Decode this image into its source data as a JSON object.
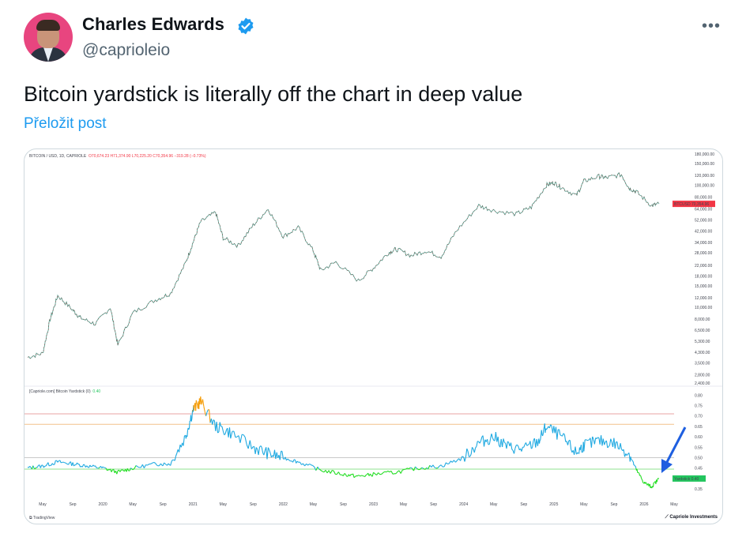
{
  "author": {
    "name": "Charles Edwards",
    "handle": "@caprioleio",
    "verified_icon": "verified-badge-icon",
    "avatar_icon": "profile-photo",
    "more_label": "•••"
  },
  "tweet": {
    "text": "Bitcoin yardstick is literally off the chart in deep value",
    "translate_label": "Přeložit post"
  },
  "colors": {
    "verified": "#1d9bf0",
    "link": "#1d9bf0",
    "price_line": "#8f2b2b",
    "yardstick_high": "#1fa9e1",
    "yardstick_low": "#22dd22",
    "yardstick_peak": "#f59e0b",
    "arrow": "#1e5fe0",
    "price_badge": "#f23645"
  },
  "chart_data": [
    {
      "type": "line",
      "title": "BITCOIN / USD, 1D, CAPRIOLE",
      "ohlc_text": "O70,674.23 H71,374.90 L70,225.20 C70,354.96 −319.28 (−0.73%)",
      "y_scale": "log",
      "y_ticks": [
        "180,000.00",
        "150,000.00",
        "120,000.00",
        "100,000.00",
        "80,000.00",
        "64,000.00",
        "52,000.00",
        "42,000.00",
        "34,000.00",
        "28,000.00",
        "22,000.00",
        "18,000.00",
        "15,000.00",
        "12,000.00",
        "10,000.00",
        "8,000.00",
        "6,500.00",
        "5,300.00",
        "4,300.00",
        "3,500.00",
        "2,800.00",
        "2,400.00"
      ],
      "y_range": [
        2400,
        180000
      ],
      "current_label": "BTCUSD",
      "current_value": "70,354.96",
      "series": [
        {
          "x": [
            "2019-03",
            "2019-05",
            "2019-06",
            "2019-07",
            "2019-09",
            "2019-10",
            "2019-12",
            "2020-02",
            "2020-03",
            "2020-05",
            "2020-08",
            "2020-10",
            "2020-12",
            "2021-01",
            "2021-02",
            "2021-04",
            "2021-05",
            "2021-07",
            "2021-09",
            "2021-11",
            "2022-01",
            "2022-03",
            "2022-05",
            "2022-06",
            "2022-08",
            "2022-11",
            "2023-01",
            "2023-03",
            "2023-04",
            "2023-06",
            "2023-08",
            "2023-10",
            "2023-12",
            "2024-03",
            "2024-05",
            "2024-08",
            "2024-10",
            "2024-12",
            "2025-01",
            "2025-02",
            "2025-04",
            "2025-05",
            "2025-07",
            "2025-08",
            "2025-10",
            "2025-11",
            "2025-12",
            "2026-02",
            "2026-03"
          ],
          "values": [
            3900,
            4200,
            8000,
            12500,
            9500,
            8200,
            7300,
            10000,
            4900,
            9000,
            11500,
            13000,
            23000,
            34000,
            50000,
            60000,
            37000,
            32000,
            47000,
            64000,
            38000,
            45000,
            29000,
            20000,
            23500,
            16500,
            21000,
            28000,
            30000,
            26500,
            29000,
            26000,
            42000,
            68000,
            62000,
            58000,
            66000,
            100000,
            105000,
            96000,
            82000,
            108000,
            118000,
            115000,
            122000,
            95000,
            88000,
            68000,
            70354
          ]
        }
      ]
    },
    {
      "type": "line",
      "title": "[Capriole.com] Bitcoin Yardstick (0)",
      "current_value_text": "0.40",
      "y_ticks": [
        "0.80",
        "0.75",
        "0.70",
        "0.65",
        "0.60",
        "0.55",
        "0.50",
        "0.45",
        "0.40",
        "0.35"
      ],
      "y_range": [
        0.32,
        0.82
      ],
      "reference_lines": [
        0.71,
        0.66,
        0.5,
        0.445
      ],
      "current_label": "Yardstick",
      "current_value": "0.40",
      "x_ticks": [
        "May",
        "Sep",
        "2020",
        "May",
        "Sep",
        "2021",
        "May",
        "Sep",
        "2022",
        "May",
        "Sep",
        "2023",
        "May",
        "Sep",
        "2024",
        "May",
        "Sep",
        "2025",
        "May",
        "Sep",
        "2026",
        "May"
      ],
      "series": [
        {
          "x": [
            "2019-03",
            "2019-05",
            "2019-07",
            "2019-09",
            "2019-11",
            "2020-01",
            "2020-03",
            "2020-05",
            "2020-08",
            "2020-10",
            "2020-12",
            "2021-01",
            "2021-02",
            "2021-04",
            "2021-06",
            "2021-09",
            "2021-11",
            "2022-01",
            "2022-03",
            "2022-06",
            "2022-09",
            "2022-11",
            "2023-01",
            "2023-04",
            "2023-07",
            "2023-10",
            "2024-01",
            "2024-03",
            "2024-05",
            "2024-07",
            "2024-09",
            "2024-11",
            "2024-12",
            "2025-02",
            "2025-04",
            "2025-05",
            "2025-07",
            "2025-09",
            "2025-11",
            "2025-12",
            "2026-01",
            "2026-02",
            "2026-03"
          ],
          "values": [
            0.45,
            0.46,
            0.48,
            0.47,
            0.46,
            0.45,
            0.43,
            0.45,
            0.47,
            0.47,
            0.6,
            0.73,
            0.77,
            0.65,
            0.62,
            0.55,
            0.52,
            0.5,
            0.48,
            0.44,
            0.42,
            0.41,
            0.42,
            0.43,
            0.45,
            0.46,
            0.5,
            0.57,
            0.6,
            0.55,
            0.54,
            0.58,
            0.65,
            0.6,
            0.52,
            0.56,
            0.58,
            0.57,
            0.52,
            0.44,
            0.38,
            0.36,
            0.4
          ]
        }
      ]
    }
  ],
  "footer": {
    "tradingview": "TradingView",
    "capriole": "Capriole Investments"
  }
}
